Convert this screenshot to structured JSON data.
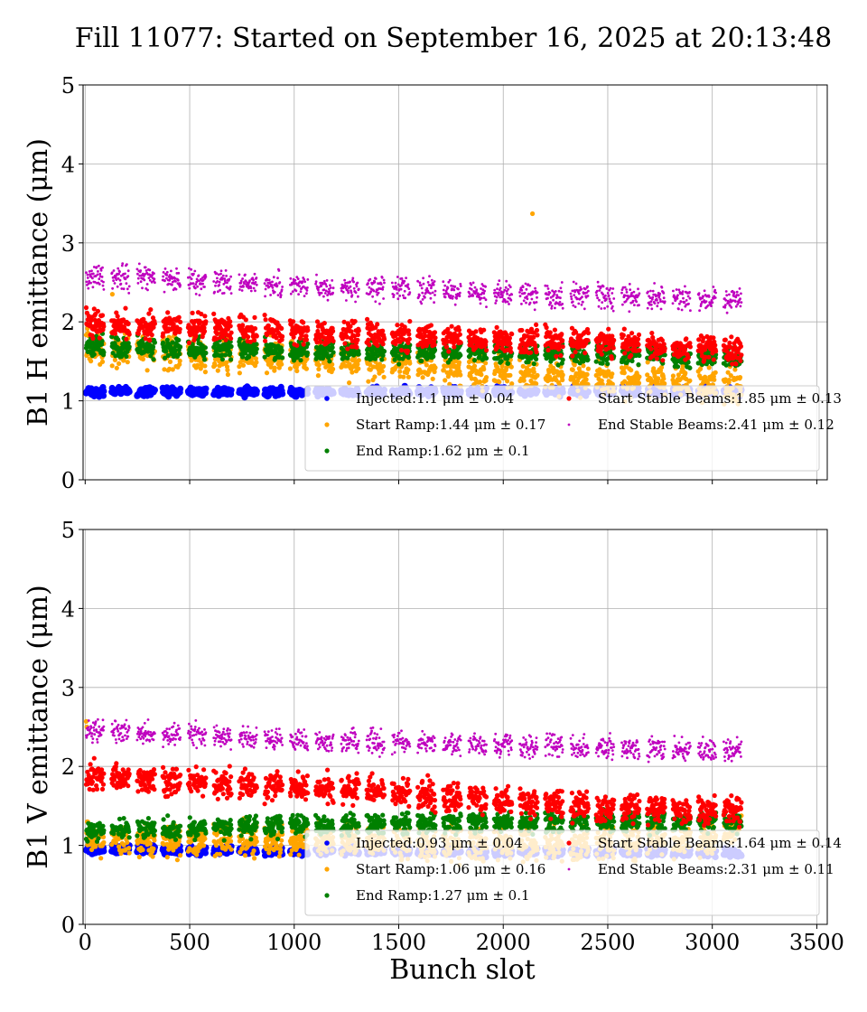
{
  "figure": {
    "title": "Fill 11077: Started on September 16, 2025 at 20:13:48"
  },
  "chart_data": [
    {
      "type": "scatter",
      "panel": "top",
      "ylabel": "B1 H emittance (μm)",
      "xlabel": "",
      "xlim": [
        -10,
        3550
      ],
      "ylim": [
        0,
        5
      ],
      "xticks": [
        0,
        500,
        1000,
        1500,
        2000,
        2500,
        3000,
        3500
      ],
      "xtick_labels_visible": false,
      "yticks": [
        0,
        1,
        2,
        3,
        4,
        5
      ],
      "grid": true,
      "legend_placement": "lower-right",
      "series": [
        {
          "name": "Injected",
          "legend_label": "Injected:1.1 μm ± 0.04",
          "color": "#0000ff",
          "mean": 1.1,
          "std": 0.04,
          "marker_size": "large",
          "profile": [
            [
              0,
              1.12
            ],
            [
              1000,
              1.11
            ],
            [
              2000,
              1.12
            ],
            [
              3230,
              1.12
            ]
          ]
        },
        {
          "name": "Start Ramp",
          "legend_label": "Start Ramp:1.44 μm ± 0.17",
          "color": "#ffa500",
          "mean": 1.44,
          "std": 0.17,
          "marker_size": "medium",
          "profile": [
            [
              0,
              1.68
            ],
            [
              500,
              1.6
            ],
            [
              1000,
              1.56
            ],
            [
              1500,
              1.47
            ],
            [
              2000,
              1.37
            ],
            [
              2500,
              1.28
            ],
            [
              3230,
              1.18
            ]
          ],
          "outliers": [
            [
              2140,
              3.37
            ],
            [
              130,
              2.35
            ]
          ]
        },
        {
          "name": "End Ramp",
          "legend_label": "End Ramp:1.62 μm ± 0.1",
          "color": "#008000",
          "mean": 1.62,
          "std": 0.1,
          "marker_size": "medium",
          "profile": [
            [
              0,
              1.68
            ],
            [
              1000,
              1.64
            ],
            [
              2000,
              1.62
            ],
            [
              3230,
              1.55
            ]
          ]
        },
        {
          "name": "Start Stable Beams",
          "legend_label": "Start Stable Beams:1.85 μm ± 0.13",
          "color": "#ff0000",
          "mean": 1.85,
          "std": 0.13,
          "marker_size": "medium",
          "profile": [
            [
              0,
              2.0
            ],
            [
              500,
              1.93
            ],
            [
              1000,
              1.88
            ],
            [
              1500,
              1.82
            ],
            [
              2000,
              1.78
            ],
            [
              2500,
              1.72
            ],
            [
              3230,
              1.62
            ]
          ]
        },
        {
          "name": "End Stable Beams",
          "legend_label": "End Stable Beams:2.41 μm ± 0.12",
          "color": "#bf00bf",
          "mean": 2.41,
          "std": 0.12,
          "marker_size": "small",
          "profile": [
            [
              0,
              2.58
            ],
            [
              500,
              2.52
            ],
            [
              1000,
              2.45
            ],
            [
              1500,
              2.42
            ],
            [
              2000,
              2.35
            ],
            [
              2500,
              2.32
            ],
            [
              3230,
              2.27
            ]
          ]
        }
      ]
    },
    {
      "type": "scatter",
      "panel": "bottom",
      "ylabel": "B1 V emittance (μm)",
      "xlabel": "Bunch slot",
      "xlim": [
        -10,
        3550
      ],
      "ylim": [
        0,
        5
      ],
      "xticks": [
        0,
        500,
        1000,
        1500,
        2000,
        2500,
        3000,
        3500
      ],
      "xtick_labels_visible": true,
      "yticks": [
        0,
        1,
        2,
        3,
        4,
        5
      ],
      "grid": true,
      "legend_placement": "lower-right",
      "series": [
        {
          "name": "Injected",
          "legend_label": "Injected:0.93 μm ± 0.04",
          "color": "#0000ff",
          "mean": 0.93,
          "std": 0.04,
          "marker_size": "large",
          "profile": [
            [
              0,
              0.95
            ],
            [
              1000,
              0.93
            ],
            [
              2000,
              0.92
            ],
            [
              3230,
              0.9
            ]
          ]
        },
        {
          "name": "Start Ramp",
          "legend_label": "Start Ramp:1.06 μm ± 0.16",
          "color": "#ffa500",
          "mean": 1.06,
          "std": 0.16,
          "marker_size": "medium",
          "profile": [
            [
              0,
              1.08
            ],
            [
              1000,
              1.05
            ],
            [
              2000,
              1.02
            ],
            [
              3000,
              1.05
            ],
            [
              3230,
              1.45
            ]
          ],
          "outliers": [
            [
              5,
              2.57
            ],
            [
              8,
              2.5
            ],
            [
              10,
              1.3
            ]
          ]
        },
        {
          "name": "End Ramp",
          "legend_label": "End Ramp:1.27 μm ± 0.1",
          "color": "#008000",
          "mean": 1.27,
          "std": 0.1,
          "marker_size": "medium",
          "profile": [
            [
              0,
              1.18
            ],
            [
              1000,
              1.25
            ],
            [
              2000,
              1.3
            ],
            [
              3230,
              1.3
            ]
          ]
        },
        {
          "name": "Start Stable Beams",
          "legend_label": "Start Stable Beams:1.64 μm ± 0.14",
          "color": "#ff0000",
          "mean": 1.64,
          "std": 0.14,
          "marker_size": "medium",
          "profile": [
            [
              0,
              1.88
            ],
            [
              500,
              1.8
            ],
            [
              1000,
              1.74
            ],
            [
              1500,
              1.68
            ],
            [
              2000,
              1.55
            ],
            [
              2500,
              1.48
            ],
            [
              3230,
              1.42
            ]
          ]
        },
        {
          "name": "End Stable Beams",
          "legend_label": "End Stable Beams:2.31 μm ± 0.11",
          "color": "#bf00bf",
          "mean": 2.31,
          "std": 0.11,
          "marker_size": "small",
          "profile": [
            [
              0,
              2.45
            ],
            [
              500,
              2.4
            ],
            [
              1000,
              2.34
            ],
            [
              1500,
              2.3
            ],
            [
              2000,
              2.27
            ],
            [
              2500,
              2.24
            ],
            [
              3230,
              2.2
            ]
          ]
        }
      ]
    }
  ]
}
